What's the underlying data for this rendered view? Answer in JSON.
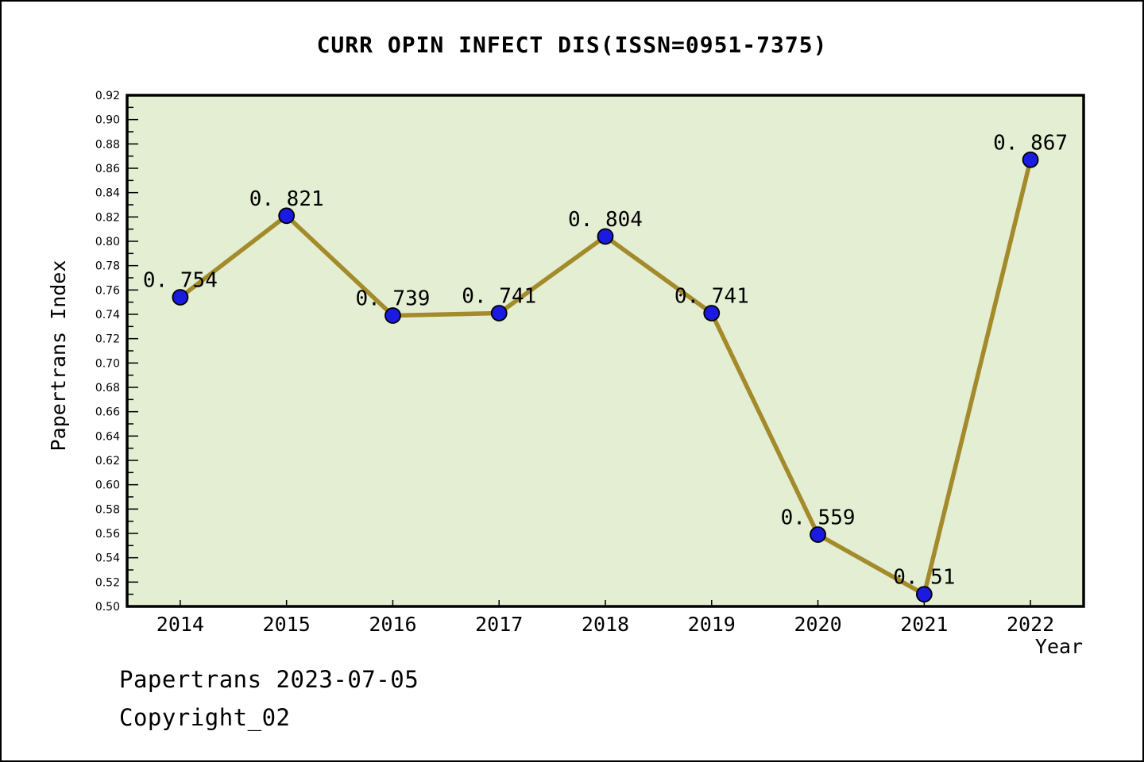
{
  "title": "CURR OPIN INFECT DIS(ISSN=0951-7375)",
  "footer": {
    "line1": "Papertrans 2023-07-05",
    "line2": "Copyright_02"
  },
  "chart_data": {
    "type": "line",
    "x": [
      2014,
      2015,
      2016,
      2017,
      2018,
      2019,
      2020,
      2021,
      2022
    ],
    "series": [
      {
        "name": "Papertrans Index",
        "values": [
          0.754,
          0.821,
          0.739,
          0.741,
          0.804,
          0.741,
          0.559,
          0.51,
          0.867
        ]
      }
    ],
    "point_labels": [
      "0. 754",
      "0. 821",
      "0. 739",
      "0. 741",
      "0. 804",
      "0. 741",
      "0. 559",
      "0. 51",
      "0. 867"
    ],
    "title": "CURR OPIN INFECT DIS(ISSN=0951-7375)",
    "xlabel": "Year",
    "ylabel": "Papertrans Index",
    "ylim": [
      0.5,
      0.92
    ],
    "ytick_major_step": 0.02,
    "ytick_minor_step": 0.01,
    "grid": false,
    "legend_position": "none",
    "colors": {
      "plot_bg": "#e3eed3",
      "line": "#a38a2a",
      "marker": "#1a1ae0",
      "marker_edge": "#000000",
      "axis": "#000000",
      "text": "#000000"
    }
  }
}
